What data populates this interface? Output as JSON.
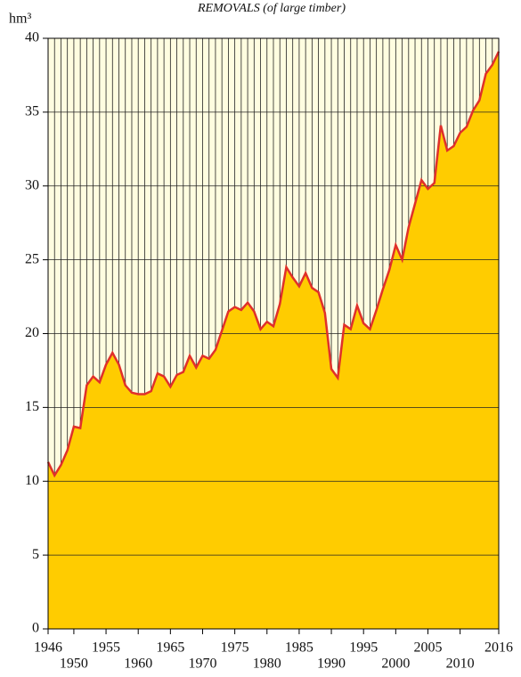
{
  "chart_data": {
    "type": "area",
    "title": "REMOVALS (of large timber)",
    "y_label": "hm³",
    "x": [
      1946,
      1947,
      1948,
      1949,
      1950,
      1951,
      1952,
      1953,
      1954,
      1955,
      1956,
      1957,
      1958,
      1959,
      1960,
      1961,
      1962,
      1963,
      1964,
      1965,
      1966,
      1967,
      1968,
      1969,
      1970,
      1971,
      1972,
      1973,
      1974,
      1975,
      1976,
      1977,
      1978,
      1979,
      1980,
      1981,
      1982,
      1983,
      1984,
      1985,
      1986,
      1987,
      1988,
      1989,
      1990,
      1991,
      1992,
      1993,
      1994,
      1995,
      1996,
      1997,
      1998,
      1999,
      2000,
      2001,
      2002,
      2003,
      2004,
      2005,
      2006,
      2007,
      2008,
      2009,
      2010,
      2011,
      2012,
      2013,
      2014,
      2015,
      2016
    ],
    "series": [
      {
        "color": "#ffcc00",
        "line_color": "#e0302a",
        "values": [
          11.3,
          10.4,
          11.1,
          12.1,
          13.7,
          13.6,
          16.5,
          17.1,
          16.7,
          17.9,
          18.7,
          17.9,
          16.5,
          16.0,
          15.9,
          15.9,
          16.1,
          17.3,
          17.1,
          16.4,
          17.2,
          17.4,
          18.5,
          17.7,
          18.5,
          18.3,
          18.9,
          20.2,
          21.5,
          21.8,
          21.6,
          22.1,
          21.5,
          20.3,
          20.8,
          20.5,
          22.0,
          24.5,
          23.8,
          23.2,
          24.1,
          23.1,
          22.8,
          21.4,
          17.6,
          17.0,
          20.6,
          20.3,
          21.9,
          20.7,
          20.3,
          21.6,
          23.0,
          24.3,
          26.0,
          25.0,
          27.2,
          28.8,
          30.4,
          29.8,
          30.2,
          34.1,
          32.4,
          32.7,
          33.6,
          34.0,
          35.1,
          35.8,
          37.6,
          38.2,
          39.1
        ]
      }
    ],
    "xlim": [
      1946,
      2016
    ],
    "xticks": [
      1946,
      1950,
      1955,
      1960,
      1965,
      1970,
      1975,
      1980,
      1985,
      1990,
      1995,
      2000,
      2005,
      2010,
      2016
    ],
    "ylim": [
      0,
      40
    ],
    "yticks": [
      0,
      5,
      10,
      15,
      20,
      25,
      30,
      35,
      40
    ],
    "grid": true,
    "background": "#fffde0"
  }
}
